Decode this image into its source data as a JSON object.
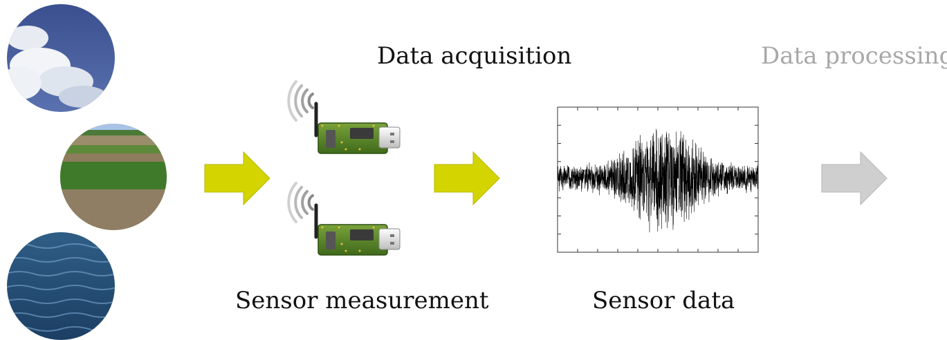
{
  "titles": {
    "acquisition": "Data acquisition",
    "processing": "Data processing"
  },
  "labels": {
    "sensor_measurement": "Sensor measurement",
    "sensor_data": "Sensor data"
  },
  "environments": [
    {
      "name": "sky-photo"
    },
    {
      "name": "field-photo"
    },
    {
      "name": "sea-photo"
    }
  ],
  "colors": {
    "accent_arrow": "#d4d400",
    "muted_arrow": "#c8c8c8",
    "board": "#4f7a22",
    "muted_text": "#a8a8a8"
  },
  "icons": [
    "wireless-sensor-icon",
    "arrow-right-icon"
  ]
}
